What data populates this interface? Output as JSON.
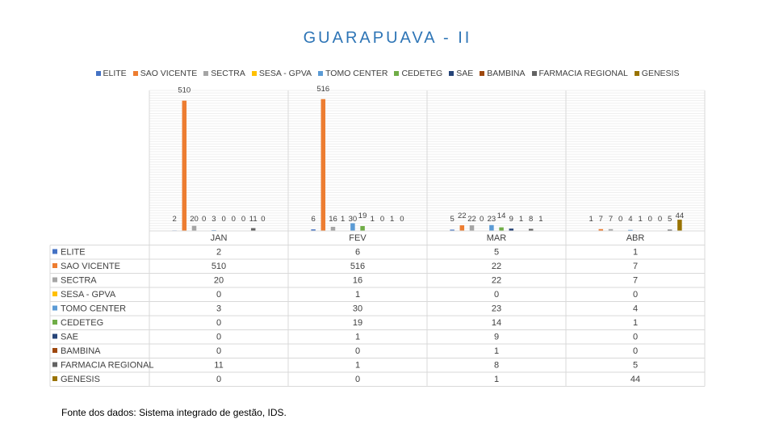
{
  "chart_data": {
    "type": "bar",
    "title": "GUARAPUAVA - II",
    "categories": [
      "JAN",
      "FEV",
      "MAR",
      "ABR"
    ],
    "series": [
      {
        "name": "ELITE",
        "color": "#4472c4",
        "values": [
          2,
          6,
          5,
          1
        ]
      },
      {
        "name": "SAO VICENTE",
        "color": "#ed7d31",
        "values": [
          510,
          516,
          22,
          7
        ]
      },
      {
        "name": "SECTRA",
        "color": "#a5a5a5",
        "values": [
          20,
          16,
          22,
          7
        ]
      },
      {
        "name": "SESA - GPVA",
        "color": "#ffc000",
        "values": [
          0,
          1,
          0,
          0
        ]
      },
      {
        "name": "TOMO CENTER",
        "color": "#5b9bd5",
        "values": [
          3,
          30,
          23,
          4
        ]
      },
      {
        "name": "CEDETEG",
        "color": "#70ad47",
        "values": [
          0,
          19,
          14,
          1
        ]
      },
      {
        "name": "SAE",
        "color": "#264478",
        "values": [
          0,
          1,
          9,
          0
        ]
      },
      {
        "name": "BAMBINA",
        "color": "#9e480e",
        "values": [
          0,
          0,
          1,
          0
        ]
      },
      {
        "name": "FARMACIA REGIONAL",
        "color": "#636363",
        "values": [
          11,
          1,
          8,
          5
        ]
      },
      {
        "name": "GENESIS",
        "color": "#997300",
        "values": [
          0,
          0,
          1,
          44
        ]
      }
    ],
    "ylim": [
      0,
      550
    ],
    "legend": "top",
    "data_table": true,
    "grid": true
  },
  "footer": "Fonte dos dados: Sistema integrado de gestão, IDS."
}
